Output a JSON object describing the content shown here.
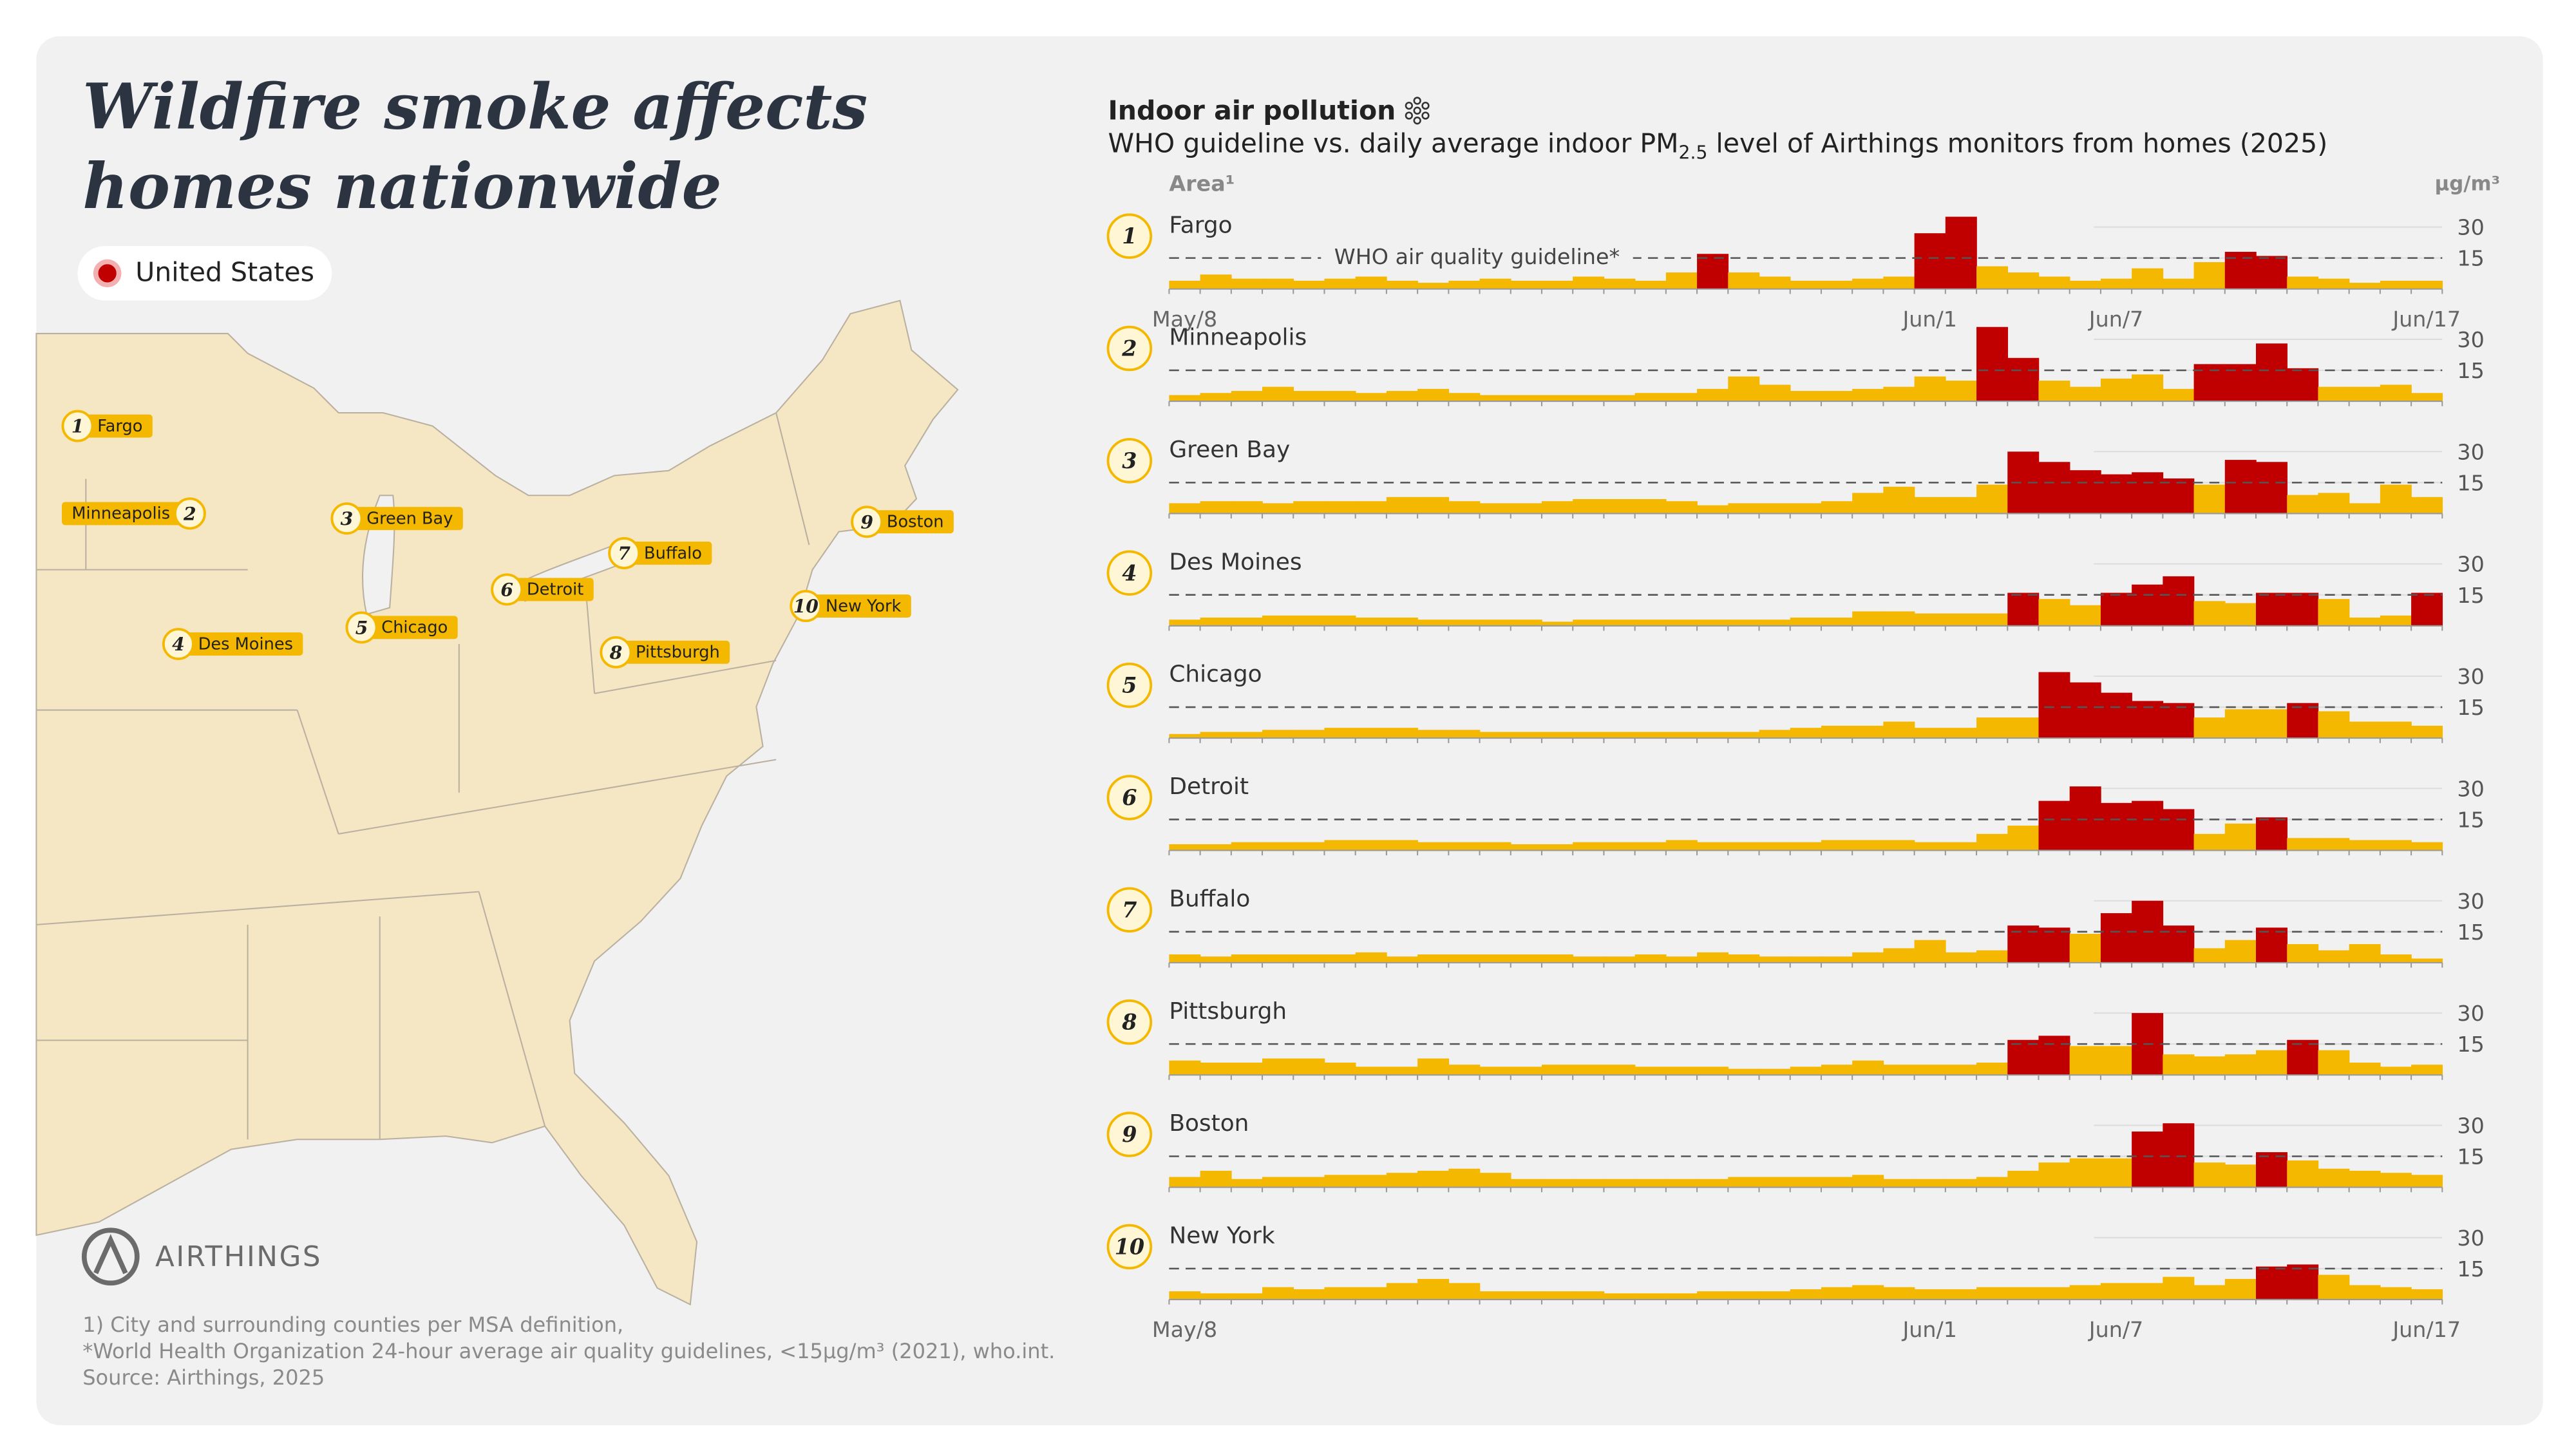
{
  "header": {
    "title": [
      "Wildfire smoke affects",
      "homes nationwide"
    ],
    "legend": "United States",
    "brand": "AIRTHINGS",
    "footnotes": [
      "1) City and surrounding counties per MSA definition,",
      "*World Health Organization 24-hour average air quality guidelines, <15µg/m³ (2021), who.int.",
      "Source: Airthings, 2025"
    ]
  },
  "panel": {
    "title": "Indoor air pollution",
    "subtitle": [
      "WHO guideline vs. daily average indoor PM",
      "2.5",
      " level of Airthings monitors from homes (2025)"
    ],
    "area_label": "Area¹",
    "unit_label": "µg/m³",
    "guideline": 15,
    "guideline_label": "WHO air quality guideline*",
    "color": "#f5b800",
    "highlight_color": "#c00000"
  },
  "chart_data": [
    {
      "type": "bar",
      "title": "Fargo",
      "badge": "1",
      "ylim": [
        0,
        36
      ],
      "yticks": [
        15,
        30
      ],
      "categories": [
        "May/8",
        null,
        null,
        null,
        null,
        null,
        null,
        null,
        null,
        null,
        null,
        null,
        null,
        null,
        null,
        null,
        null,
        null,
        null,
        null,
        null,
        null,
        null,
        null,
        "Jun/1",
        null,
        null,
        null,
        null,
        null,
        "Jun/7",
        null,
        null,
        null,
        null,
        null,
        null,
        null,
        null,
        null,
        "Jun/17"
      ],
      "values": [
        4,
        7,
        5,
        5,
        4,
        5,
        6,
        4,
        3,
        4,
        5,
        4,
        4,
        6,
        5,
        4,
        8,
        17,
        8,
        6,
        4,
        4,
        5,
        6,
        27,
        35,
        11,
        8,
        6,
        4,
        5,
        10,
        5,
        13,
        18,
        16,
        6,
        5,
        3,
        4,
        4
      ]
    },
    {
      "type": "bar",
      "title": "Minneapolis",
      "badge": "2",
      "ylim": [
        0,
        36
      ],
      "yticks": [
        15,
        30
      ],
      "values": [
        3,
        4,
        5,
        7,
        5,
        5,
        4,
        5,
        6,
        4,
        3,
        3,
        3,
        3,
        3,
        4,
        4,
        6,
        12,
        8,
        5,
        5,
        6,
        7,
        12,
        10,
        36,
        21,
        10,
        7,
        11,
        13,
        6,
        18,
        18,
        28,
        16,
        7,
        7,
        8,
        4
      ]
    },
    {
      "type": "bar",
      "title": "Green Bay",
      "badge": "3",
      "ylim": [
        0,
        36
      ],
      "yticks": [
        15,
        30
      ],
      "values": [
        5,
        6,
        6,
        5,
        6,
        6,
        6,
        8,
        8,
        6,
        5,
        5,
        6,
        7,
        7,
        7,
        6,
        4,
        5,
        5,
        5,
        6,
        10,
        13,
        8,
        8,
        14,
        30,
        25,
        21,
        19,
        20,
        17,
        14,
        26,
        25,
        9,
        10,
        5,
        14,
        8
      ]
    },
    {
      "type": "bar",
      "title": "Des Moines",
      "badge": "4",
      "ylim": [
        0,
        36
      ],
      "yticks": [
        15,
        30
      ],
      "values": [
        3,
        4,
        4,
        5,
        5,
        5,
        4,
        4,
        3,
        3,
        3,
        3,
        2,
        3,
        3,
        3,
        3,
        3,
        3,
        3,
        4,
        4,
        7,
        7,
        6,
        6,
        6,
        16,
        13,
        10,
        16,
        20,
        24,
        12,
        11,
        16,
        16,
        13,
        4,
        5,
        16
      ]
    },
    {
      "type": "bar",
      "title": "Chicago",
      "badge": "5",
      "ylim": [
        0,
        36
      ],
      "yticks": [
        15,
        30
      ],
      "values": [
        2,
        3,
        3,
        4,
        4,
        5,
        5,
        5,
        4,
        4,
        3,
        3,
        3,
        3,
        3,
        3,
        3,
        3,
        3,
        4,
        5,
        6,
        6,
        8,
        5,
        5,
        10,
        10,
        32,
        27,
        22,
        18,
        17,
        10,
        14,
        14,
        17,
        13,
        8,
        8,
        6
      ]
    },
    {
      "type": "bar",
      "title": "Detroit",
      "badge": "6",
      "ylim": [
        0,
        36
      ],
      "yticks": [
        15,
        30
      ],
      "values": [
        3,
        3,
        4,
        4,
        4,
        5,
        5,
        5,
        4,
        4,
        4,
        3,
        3,
        4,
        4,
        4,
        5,
        4,
        4,
        4,
        4,
        5,
        5,
        5,
        4,
        4,
        8,
        12,
        24,
        31,
        23,
        24,
        20,
        8,
        13,
        16,
        6,
        6,
        5,
        5,
        4
      ]
    },
    {
      "type": "bar",
      "title": "Buffalo",
      "badge": "7",
      "ylim": [
        0,
        36
      ],
      "yticks": [
        15,
        30
      ],
      "values": [
        4,
        3,
        4,
        4,
        4,
        4,
        5,
        3,
        4,
        4,
        4,
        4,
        4,
        3,
        3,
        4,
        3,
        5,
        4,
        3,
        3,
        3,
        5,
        7,
        11,
        5,
        6,
        18,
        17,
        14,
        24,
        30,
        18,
        7,
        11,
        17,
        9,
        6,
        9,
        4,
        2
      ]
    },
    {
      "type": "bar",
      "title": "Pittsburgh",
      "badge": "8",
      "ylim": [
        0,
        36
      ],
      "yticks": [
        15,
        30
      ],
      "values": [
        7,
        6,
        6,
        8,
        8,
        6,
        4,
        4,
        8,
        5,
        4,
        4,
        5,
        5,
        5,
        4,
        4,
        4,
        3,
        3,
        4,
        5,
        7,
        5,
        5,
        5,
        6,
        17,
        19,
        14,
        14,
        30,
        10,
        9,
        10,
        12,
        17,
        12,
        6,
        4,
        5
      ]
    },
    {
      "type": "bar",
      "title": "Boston",
      "badge": "9",
      "ylim": [
        0,
        36
      ],
      "yticks": [
        15,
        30
      ],
      "values": [
        5,
        8,
        4,
        5,
        5,
        6,
        6,
        7,
        8,
        9,
        7,
        4,
        4,
        4,
        4,
        4,
        4,
        4,
        5,
        5,
        5,
        5,
        6,
        4,
        4,
        4,
        5,
        8,
        12,
        14,
        14,
        27,
        31,
        12,
        11,
        17,
        13,
        9,
        8,
        7,
        6
      ]
    },
    {
      "type": "bar",
      "title": "New York",
      "badge": "10",
      "ylim": [
        0,
        36
      ],
      "yticks": [
        15,
        30
      ],
      "categories": [
        "May/8",
        null,
        null,
        null,
        null,
        null,
        null,
        null,
        null,
        null,
        null,
        null,
        null,
        null,
        null,
        null,
        null,
        null,
        null,
        null,
        null,
        null,
        null,
        null,
        "Jun/1",
        null,
        null,
        null,
        null,
        null,
        "Jun/7",
        null,
        null,
        null,
        null,
        null,
        null,
        null,
        null,
        null,
        "Jun/17"
      ],
      "values": [
        4,
        3,
        3,
        6,
        5,
        6,
        6,
        8,
        10,
        8,
        4,
        4,
        4,
        4,
        3,
        3,
        3,
        4,
        4,
        4,
        5,
        6,
        7,
        6,
        5,
        5,
        6,
        6,
        6,
        7,
        8,
        8,
        11,
        7,
        10,
        16,
        17,
        12,
        7,
        6,
        5
      ]
    }
  ]
}
